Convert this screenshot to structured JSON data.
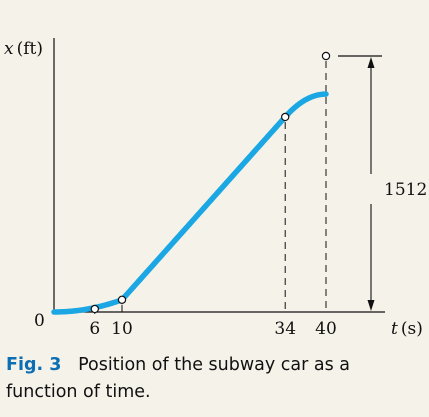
{
  "chart_data": {
    "type": "line",
    "ylabel_var": "x",
    "ylabel_unit": "(ft)",
    "xlabel_var": "t",
    "xlabel_unit": "(s)",
    "y_zero_label": "0",
    "x_ticks": [
      6,
      10,
      34,
      40
    ],
    "xlim": [
      0,
      40
    ],
    "ylim": [
      0,
      1512
    ],
    "points": [
      {
        "x": 0,
        "y": 0
      },
      {
        "x": 6,
        "y": 18
      },
      {
        "x": 10,
        "y": 72
      },
      {
        "x": 34,
        "y": 1152
      },
      {
        "x": 40,
        "y": 1512
      }
    ],
    "dimension_label": "1512 ft",
    "line_color": "#1aa7e4"
  },
  "caption": {
    "label": "Fig. 3",
    "text": "Position of the subway car as a function of time."
  }
}
